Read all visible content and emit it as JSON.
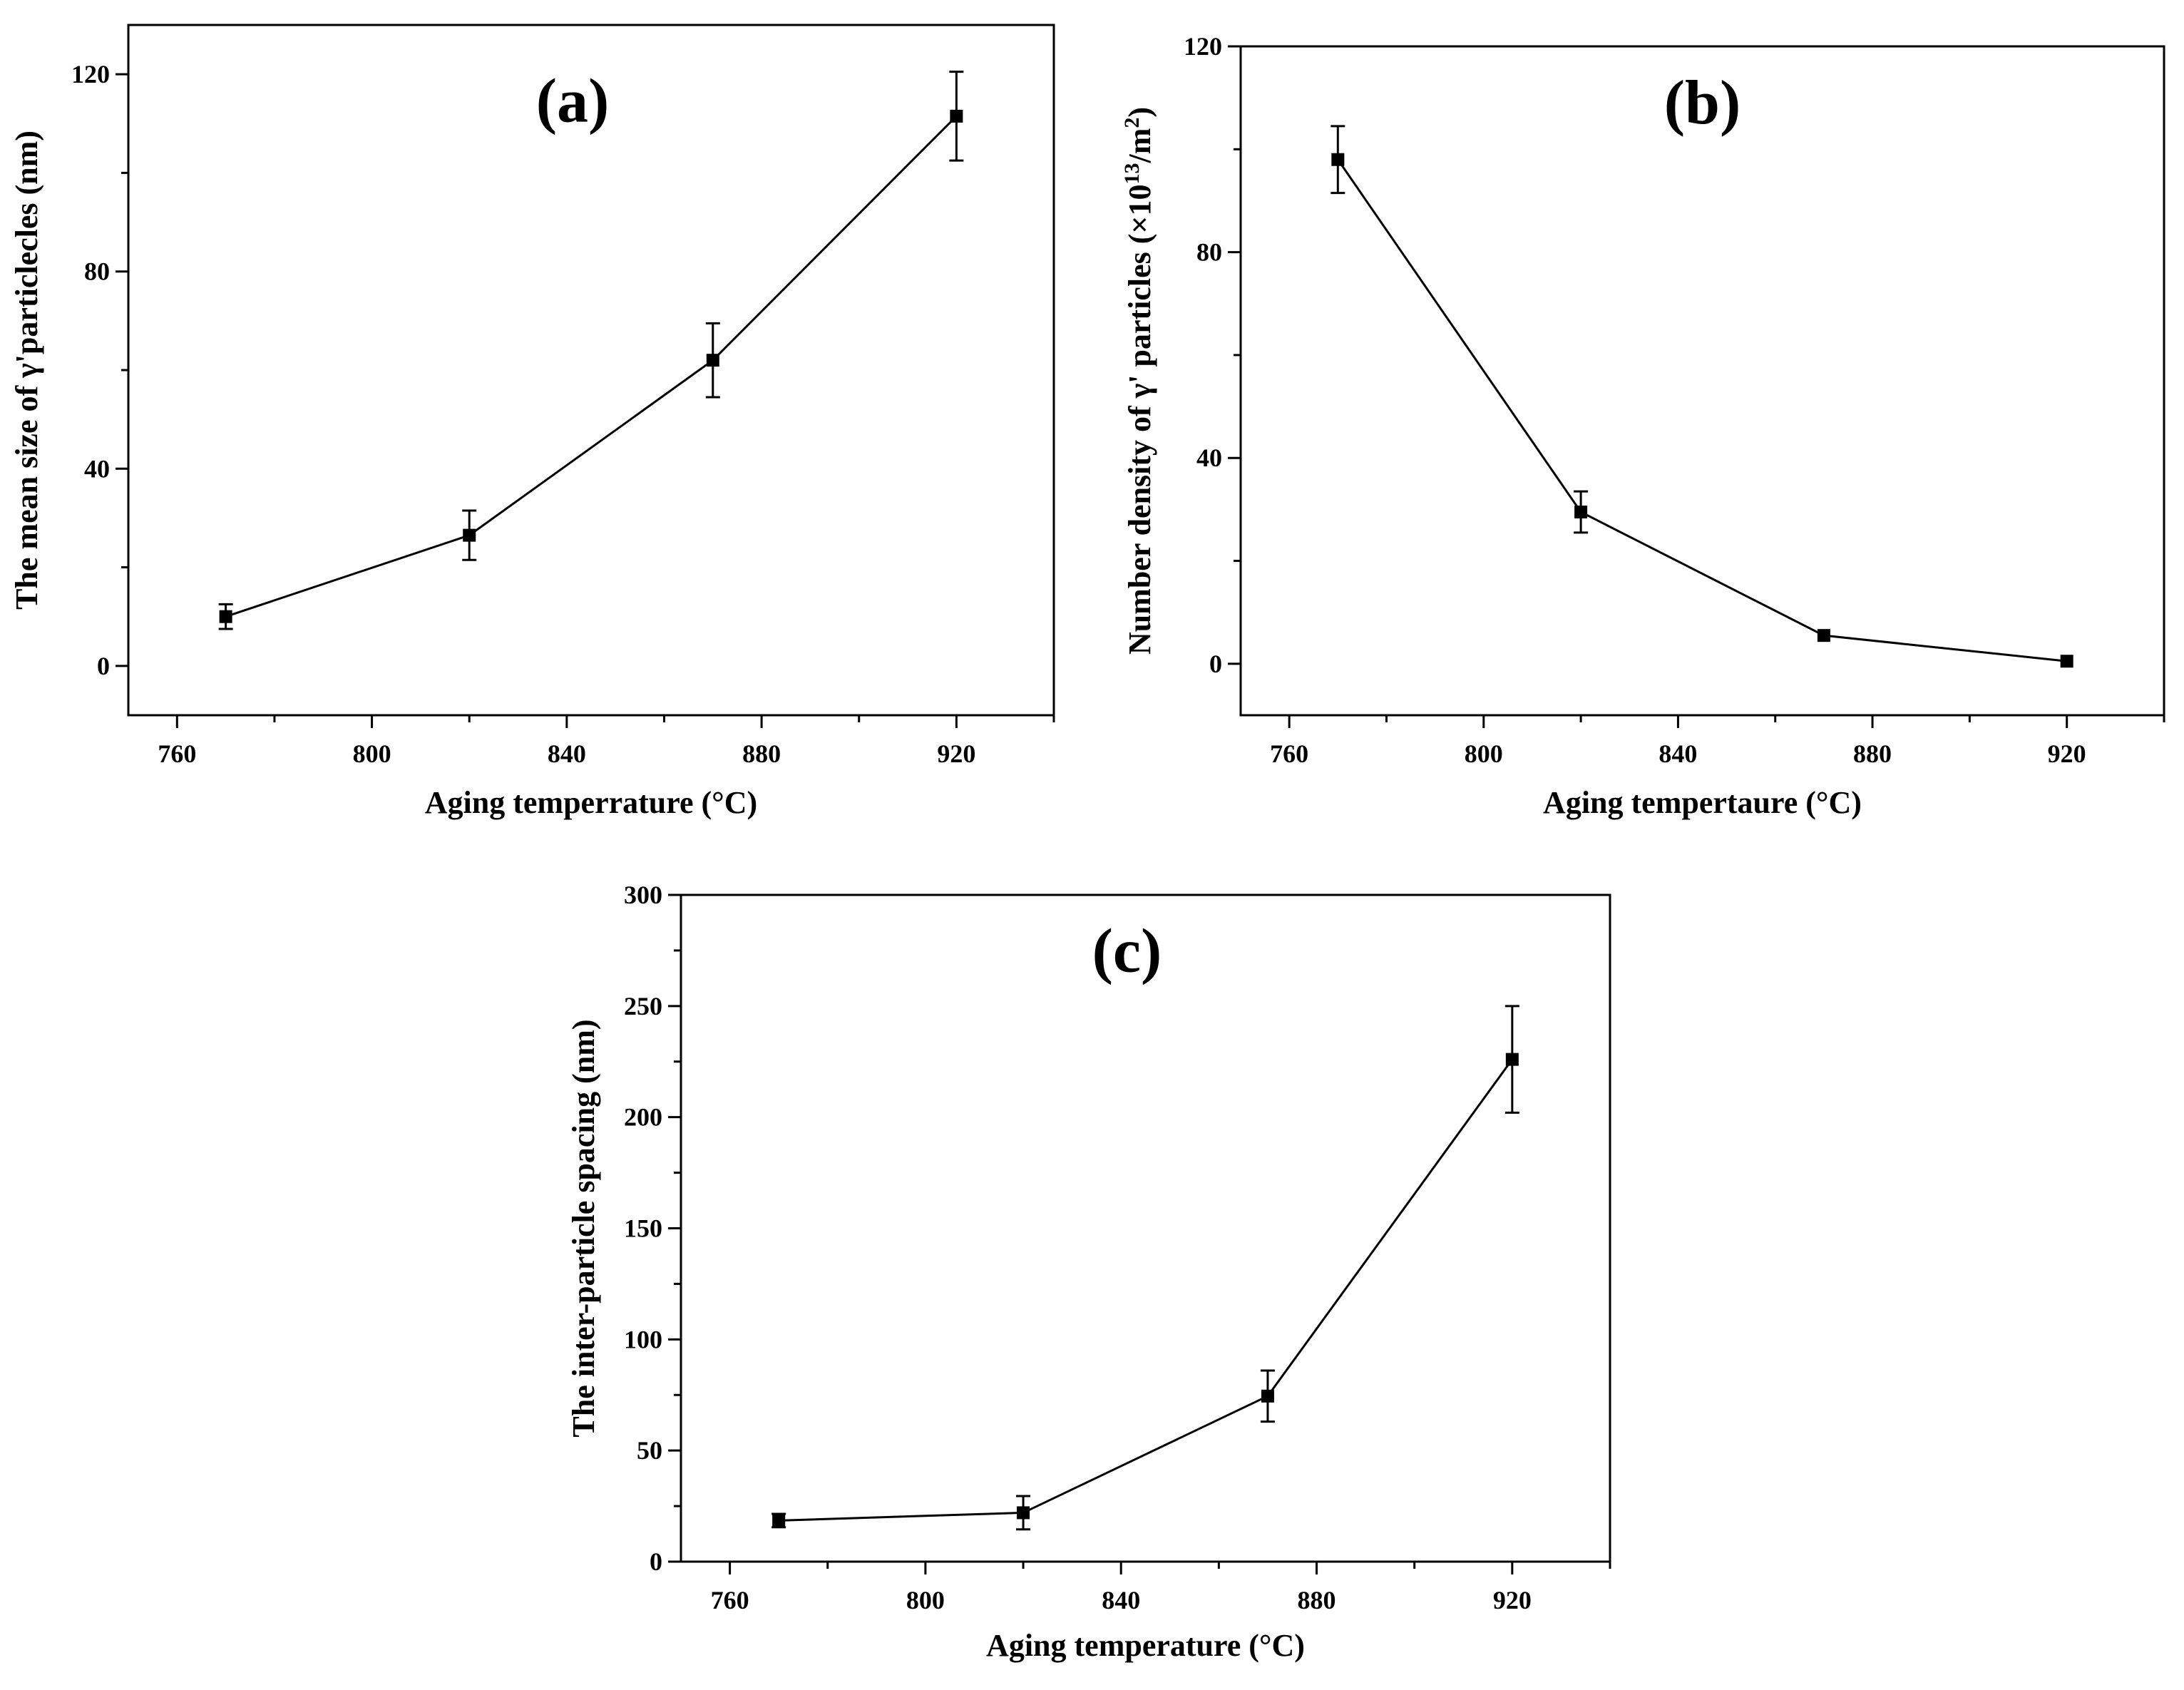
{
  "chart_data": [
    {
      "type": "line",
      "panel_label": "(a)",
      "title": "",
      "xlabel": "Aging temperrature (°C)",
      "ylabel": "The mean size of γ'particlecles (nm)",
      "xlim": [
        750,
        940
      ],
      "ylim": [
        -10,
        130
      ],
      "xticks": [
        760,
        800,
        840,
        880,
        920
      ],
      "yticks": [
        0,
        40,
        80,
        120
      ],
      "grid": false,
      "series": [
        {
          "name": "mean size",
          "marker": "square",
          "x": [
            770,
            820,
            870,
            920
          ],
          "y": [
            10,
            26.5,
            62,
            111.5
          ],
          "err": [
            2.5,
            5,
            7.5,
            9
          ]
        }
      ]
    },
    {
      "type": "line",
      "panel_label": "(b)",
      "title": "",
      "xlabel": "Aging tempertaure (°C)",
      "ylabel": "Number density of γ' particles (×10",
      "ylabel_exponent": "13",
      "ylabel_unit": "/m",
      "ylabel_unit_exponent": "2",
      "ylabel_close": ")",
      "xlim": [
        750,
        940
      ],
      "ylim": [
        -10,
        120
      ],
      "xticks": [
        760,
        800,
        840,
        880,
        920
      ],
      "yticks": [
        0,
        40,
        80,
        120
      ],
      "grid": false,
      "series": [
        {
          "name": "number density",
          "marker": "square",
          "x": [
            770,
            820,
            870,
            920
          ],
          "y": [
            98,
            29.5,
            5.5,
            0.5
          ],
          "err": [
            6.5,
            4,
            0,
            0
          ]
        }
      ]
    },
    {
      "type": "line",
      "panel_label": "(c)",
      "title": "",
      "xlabel": "Aging temperature (°C)",
      "ylabel": "The inter-particle spacing (nm)",
      "xlim": [
        750,
        940
      ],
      "ylim": [
        0,
        300
      ],
      "xticks": [
        760,
        800,
        840,
        880,
        920
      ],
      "yticks": [
        0,
        50,
        100,
        150,
        200,
        250,
        300
      ],
      "grid": false,
      "series": [
        {
          "name": "inter-particle spacing",
          "marker": "square",
          "x": [
            770,
            820,
            870,
            920
          ],
          "y": [
            18.5,
            22,
            74.5,
            226
          ],
          "err": [
            3,
            7.5,
            11.5,
            24
          ]
        }
      ]
    }
  ]
}
